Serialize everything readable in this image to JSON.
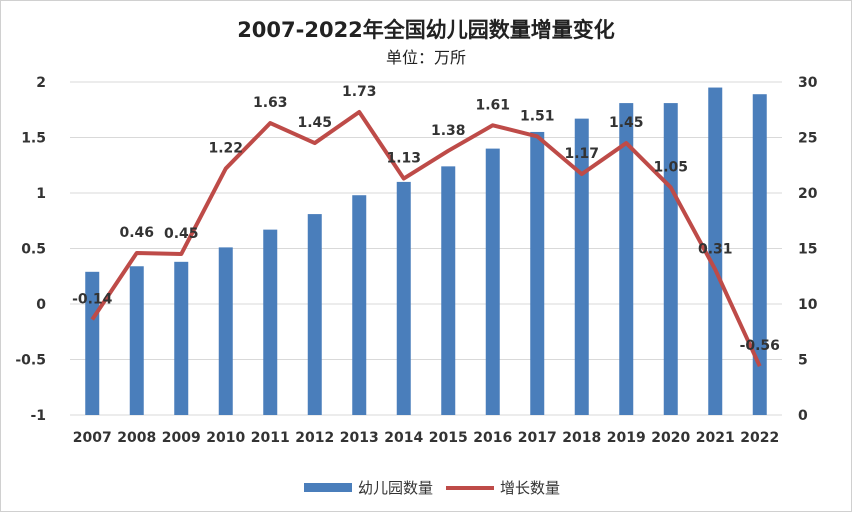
{
  "chart_data": {
    "type": "bar+line",
    "title": "2007-2022年全国幼儿园数量增量变化",
    "subtitle": "单位：万所",
    "categories": [
      "2007",
      "2008",
      "2009",
      "2010",
      "2011",
      "2012",
      "2013",
      "2014",
      "2015",
      "2016",
      "2017",
      "2018",
      "2019",
      "2020",
      "2021",
      "2022"
    ],
    "series": [
      {
        "name": "幼儿园数量",
        "kind": "bar",
        "axis": "left",
        "color": "#4a7ebb",
        "values": [
          0.29,
          0.34,
          0.38,
          0.51,
          0.67,
          0.81,
          0.98,
          1.1,
          1.24,
          1.4,
          1.55,
          1.67,
          1.81,
          1.81,
          1.95,
          1.89
        ]
      },
      {
        "name": "增长数量",
        "kind": "line",
        "axis": "right",
        "color": "#be4b48",
        "values": [
          -0.14,
          0.46,
          0.45,
          1.22,
          1.63,
          1.45,
          1.73,
          1.13,
          1.38,
          1.61,
          1.51,
          1.17,
          1.45,
          1.05,
          0.31,
          -0.56
        ],
        "labels": [
          "-0.14",
          "0.46",
          "0.45",
          "1.22",
          "1.63",
          "1.45",
          "1.73",
          "1.13",
          "1.38",
          "1.61",
          "1.51",
          "1.17",
          "1.45",
          "1.05",
          "0.31",
          "-0.56"
        ]
      }
    ],
    "y_left": {
      "min": -1,
      "max": 2,
      "ticks": [
        "-1",
        "-0.5",
        "0",
        "0.5",
        "1",
        "1.5",
        "2"
      ]
    },
    "y_right": {
      "min": 0,
      "max": 30,
      "ticks": [
        "0",
        "5",
        "10",
        "15",
        "20",
        "25",
        "30"
      ]
    },
    "grid": true,
    "legend": "bottom"
  }
}
